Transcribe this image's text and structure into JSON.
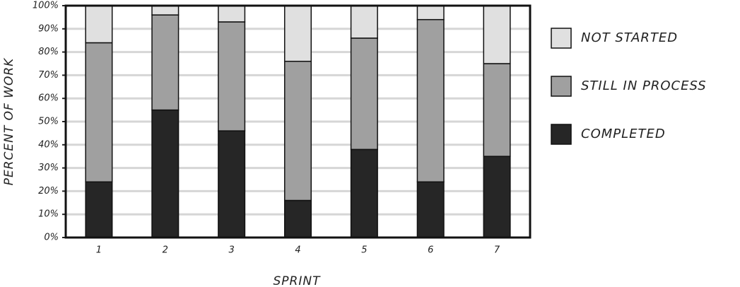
{
  "chart_data": {
    "type": "stacked_bar",
    "x_label": "SPRINT",
    "y_label": "PERCENT OF WORK",
    "categories": [
      "1",
      "2",
      "3",
      "4",
      "5",
      "6",
      "7"
    ],
    "series": [
      {
        "name": "COMPLETED",
        "color": "#262626",
        "values": [
          24,
          55,
          46,
          16,
          38,
          24,
          35
        ]
      },
      {
        "name": "STILL IN PROCESS",
        "color": "#a0a0a0",
        "values": [
          60,
          41,
          47,
          60,
          48,
          70,
          40
        ]
      },
      {
        "name": "NOT STARTED",
        "color": "#e0e0e0",
        "values": [
          16,
          4,
          7,
          24,
          14,
          6,
          25
        ]
      }
    ],
    "ylim": [
      0,
      100
    ],
    "yticks": [
      {
        "value": 0,
        "label": "0%"
      },
      {
        "value": 10,
        "label": "10%"
      },
      {
        "value": 20,
        "label": "20%"
      },
      {
        "value": 30,
        "label": "30%"
      },
      {
        "value": 40,
        "label": "40%"
      },
      {
        "value": 50,
        "label": "50%"
      },
      {
        "value": 60,
        "label": "60%"
      },
      {
        "value": 70,
        "label": "70%"
      },
      {
        "value": 80,
        "label": "80%"
      },
      {
        "value": 90,
        "label": "90%"
      },
      {
        "value": 100,
        "label": "100%"
      }
    ],
    "grid": true,
    "legend": "right"
  }
}
